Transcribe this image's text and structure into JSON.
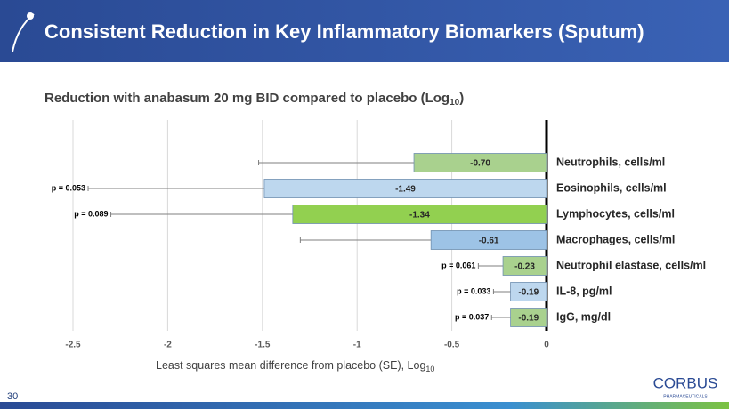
{
  "header": {
    "title": "Consistent Reduction in Key Inflammatory Biomarkers (Sputum)"
  },
  "chart_data": {
    "type": "hbar",
    "subtitle": "Reduction with anabasum 20 mg BID compared to placebo (Log",
    "subtitle_sub": "10",
    "subtitle_end": ")",
    "x_label": "Least squares mean difference from placebo (SE), Log",
    "x_label_sub": "10",
    "categories": [
      "Neutrophils, cells/ml",
      "Eosinophils, cells/ml",
      "Lymphocytes, cells/ml",
      "Macrophages, cells/ml",
      "Neutrophil elastase, cells/ml",
      "IL-8, pg/ml",
      "IgG, mg/dl"
    ],
    "values": [
      -0.7,
      -1.49,
      -1.34,
      -0.61,
      -0.23,
      -0.19,
      -0.19
    ],
    "value_labels": [
      "-0.70",
      "-1.49",
      "-1.34",
      "-0.61",
      "-0.23",
      "-0.19",
      "-0.19"
    ],
    "errors": [
      0.82,
      0.93,
      0.96,
      0.69,
      0.13,
      0.09,
      0.1
    ],
    "annotations": [
      null,
      "p = 0.053",
      "p = 0.089",
      null,
      "p = 0.061",
      "p = 0.033",
      "p = 0.037"
    ],
    "colors": [
      "#a9d18e",
      "#bdd7ee",
      "#92d050",
      "#9dc3e6",
      "#a9d18e",
      "#bdd7ee",
      "#a9d18e"
    ],
    "xlim": [
      -2.5,
      0
    ],
    "xticks": [
      -2.5,
      -2,
      -1.5,
      -1,
      -0.5,
      0
    ],
    "grid": true
  },
  "footer": {
    "page": "30",
    "logo": "CORBUS",
    "logo_sub": "PHARMACEUTICALS"
  }
}
